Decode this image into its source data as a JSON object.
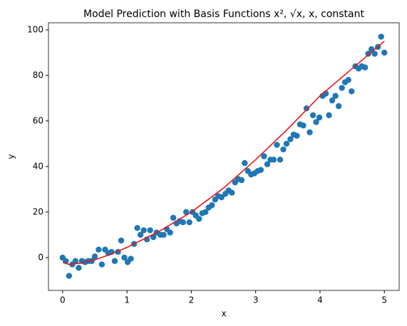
{
  "chart_data": {
    "type": "scatter",
    "title": "Model Prediction with Basis Functions x², √x, x, constant",
    "x_label": "x",
    "y_label": "y",
    "xlim": [
      -0.22,
      5.23
    ],
    "ylim": [
      -14.4,
      103.1
    ],
    "xticks": [
      0,
      1,
      2,
      3,
      4,
      5
    ],
    "yticks": [
      0,
      20,
      40,
      60,
      80,
      100
    ],
    "series": [
      {
        "type": "scatter",
        "color": "#1f77b4",
        "x": [
          0,
          0.05,
          0.1,
          0.15,
          0.2,
          0.25,
          0.3,
          0.35,
          0.4,
          0.45,
          0.5,
          0.56,
          0.61,
          0.66,
          0.71,
          0.76,
          0.81,
          0.86,
          0.91,
          0.96,
          1.01,
          1.06,
          1.11,
          1.16,
          1.21,
          1.26,
          1.31,
          1.36,
          1.41,
          1.46,
          1.52,
          1.57,
          1.62,
          1.67,
          1.72,
          1.77,
          1.82,
          1.87,
          1.92,
          1.97,
          2.02,
          2.07,
          2.12,
          2.17,
          2.22,
          2.27,
          2.32,
          2.37,
          2.42,
          2.47,
          2.53,
          2.58,
          2.63,
          2.68,
          2.73,
          2.78,
          2.83,
          2.88,
          2.93,
          2.98,
          3.03,
          3.08,
          3.13,
          3.18,
          3.23,
          3.28,
          3.33,
          3.38,
          3.43,
          3.48,
          3.54,
          3.59,
          3.64,
          3.69,
          3.74,
          3.79,
          3.84,
          3.89,
          3.94,
          3.99,
          4.04,
          4.09,
          4.14,
          4.19,
          4.24,
          4.29,
          4.34,
          4.39,
          4.44,
          4.49,
          4.55,
          4.6,
          4.65,
          4.7,
          4.75,
          4.8,
          4.85,
          4.9,
          4.95,
          5
        ],
        "values": [
          0,
          -1.5,
          -8,
          -3,
          -1.5,
          -4.5,
          -1.5,
          -2,
          -1.5,
          -1.5,
          0.5,
          3.5,
          -3,
          3.5,
          2,
          2.5,
          -1.5,
          2.5,
          7.5,
          0,
          -2,
          -0.5,
          6,
          13,
          10,
          12,
          8,
          12,
          9,
          11,
          10,
          10,
          12.5,
          11,
          17.5,
          15,
          16,
          15.5,
          20,
          15.5,
          20,
          18.5,
          17,
          19.5,
          20,
          22,
          23,
          25.5,
          27,
          26.5,
          28,
          29.5,
          28.5,
          33,
          34.5,
          34,
          41.5,
          38,
          36.5,
          37,
          38,
          38.5,
          44.5,
          41,
          43,
          43,
          49.5,
          43,
          47.5,
          50,
          52,
          54,
          53.5,
          58.5,
          58,
          65.5,
          55,
          62.5,
          59.5,
          61.5,
          71,
          72,
          62.5,
          69,
          71,
          66.5,
          74.5,
          77,
          78,
          73,
          84,
          83,
          84,
          83.5,
          89.5,
          91.5,
          89.5,
          92.5,
          97,
          90
        ]
      },
      {
        "type": "line",
        "color": "#e31a1c",
        "x": [
          0,
          0.1,
          0.25,
          0.5,
          0.75,
          1,
          1.5,
          2,
          2.5,
          3,
          3.5,
          4,
          4.5,
          5
        ],
        "values": [
          -2,
          -3,
          -2.5,
          -1,
          1.5,
          4.5,
          11.5,
          20,
          30.5,
          43,
          56.5,
          71,
          83,
          95
        ]
      }
    ]
  }
}
